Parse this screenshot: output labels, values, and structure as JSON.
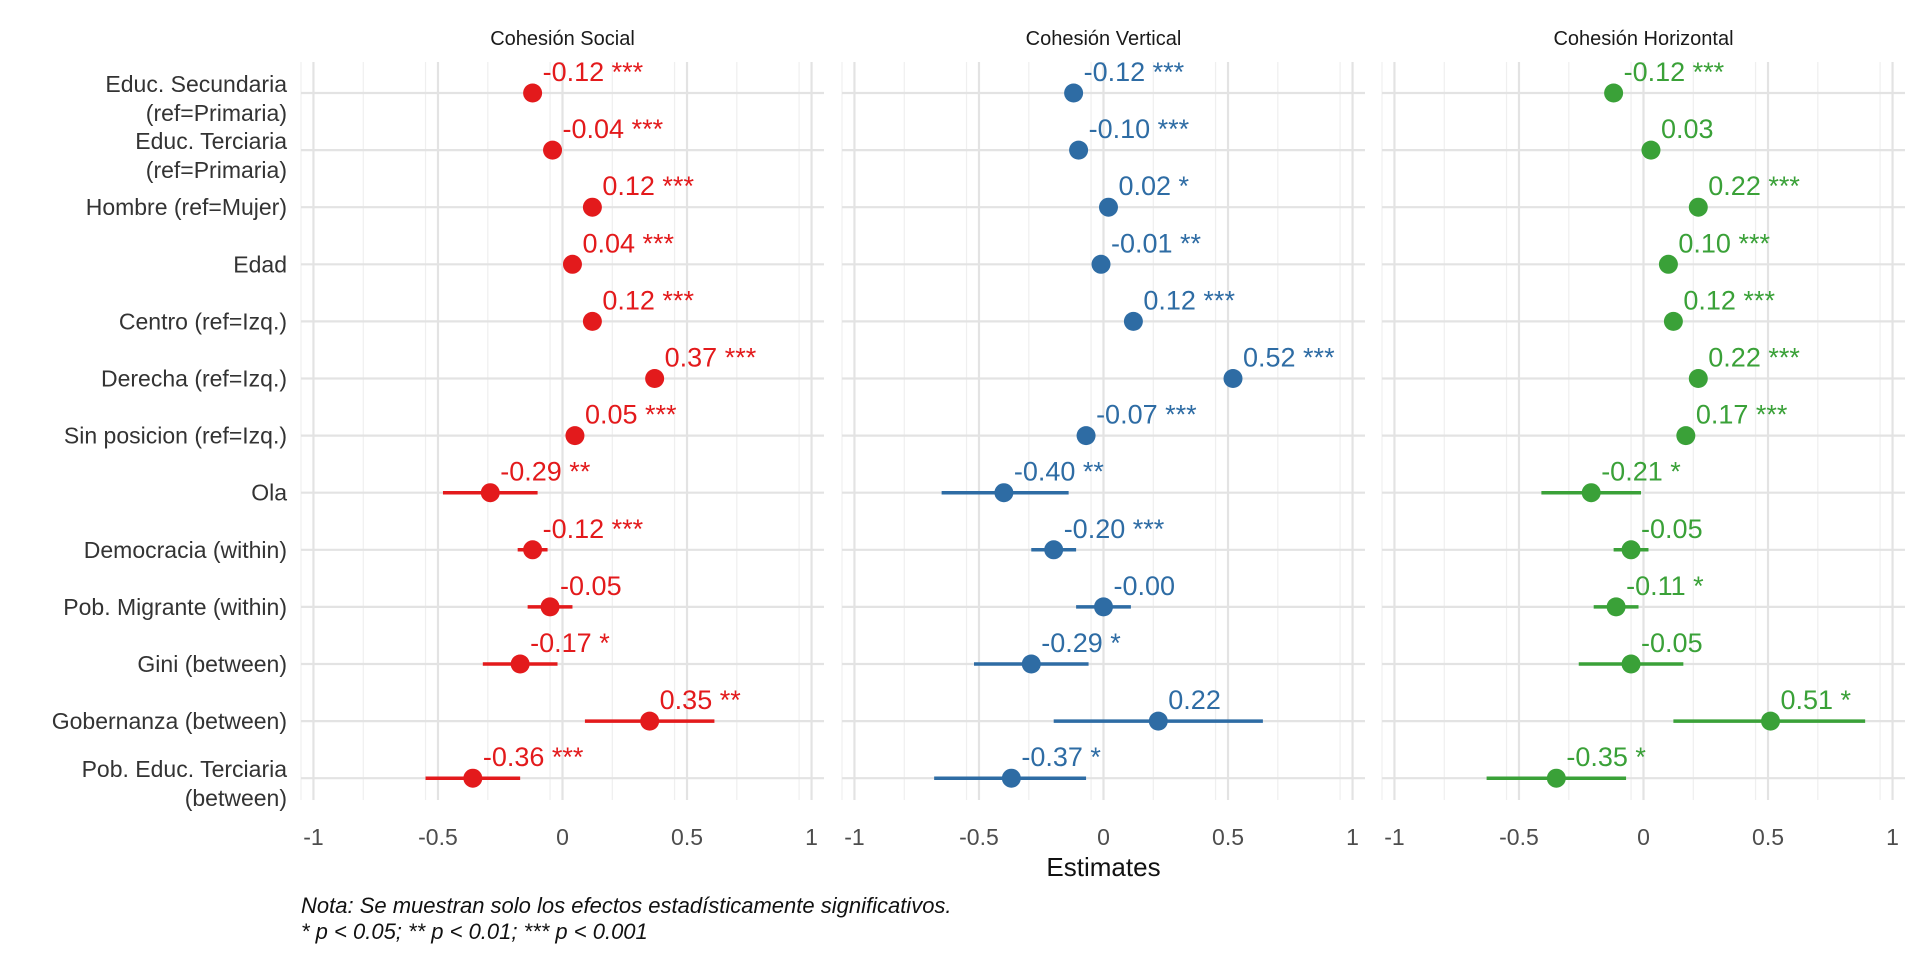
{
  "chart_data": {
    "type": "scatter",
    "subtype": "coefficient-plot",
    "xlabel": "Estimates",
    "xlim": [
      -1.05,
      1.05
    ],
    "xticks": [
      -1,
      -0.5,
      0,
      0.5,
      1
    ],
    "xtick_labels": [
      "-1",
      "-0.5",
      "0",
      "0.5",
      "1"
    ],
    "grid": true,
    "categories": [
      "Educ. Secundaria\n(ref=Primaria)",
      "Educ. Terciaria\n(ref=Primaria)",
      "Hombre (ref=Mujer)",
      "Edad",
      "Centro (ref=Izq.)",
      "Derecha (ref=Izq.)",
      "Sin posicion (ref=Izq.)",
      "Ola",
      "Democracia (within)",
      "Pob. Migrante (within)",
      "Gini (between)",
      "Gobernanza (between)",
      "Pob. Educ. Terciaria\n(between)"
    ],
    "panels": [
      {
        "title": "Cohesión Social",
        "color": "#e31a1c",
        "estimates": [
          -0.12,
          -0.04,
          0.12,
          0.04,
          0.12,
          0.37,
          0.05,
          -0.29,
          -0.12,
          -0.05,
          -0.17,
          0.35,
          -0.36
        ],
        "ci_low": [
          -0.14,
          -0.06,
          0.1,
          0.02,
          0.1,
          0.35,
          0.03,
          -0.48,
          -0.18,
          -0.14,
          -0.32,
          0.09,
          -0.55
        ],
        "ci_high": [
          -0.1,
          -0.02,
          0.14,
          0.06,
          0.14,
          0.39,
          0.07,
          -0.1,
          -0.06,
          0.04,
          -0.02,
          0.61,
          -0.17
        ],
        "labels": [
          "-0.12 ***",
          "-0.04 ***",
          "0.12 ***",
          "0.04 ***",
          "0.12 ***",
          "0.37 ***",
          "0.05 ***",
          "-0.29 **",
          "-0.12 ***",
          "-0.05",
          "-0.17 *",
          "0.35 **",
          "-0.36 ***"
        ]
      },
      {
        "title": "Cohesión Vertical",
        "color": "#2e6ca4",
        "estimates": [
          -0.12,
          -0.1,
          0.02,
          -0.01,
          0.12,
          0.52,
          -0.07,
          -0.4,
          -0.2,
          -0.0,
          -0.29,
          0.22,
          -0.37
        ],
        "ci_low": [
          -0.14,
          -0.12,
          0.0,
          -0.03,
          0.1,
          0.5,
          -0.09,
          -0.65,
          -0.29,
          -0.11,
          -0.52,
          -0.2,
          -0.68
        ],
        "ci_high": [
          -0.1,
          -0.08,
          0.04,
          0.01,
          0.14,
          0.54,
          -0.05,
          -0.14,
          -0.11,
          0.11,
          -0.06,
          0.64,
          -0.07
        ],
        "labels": [
          "-0.12 ***",
          "-0.10 ***",
          "0.02 *",
          "-0.01 **",
          "0.12 ***",
          "0.52 ***",
          "-0.07 ***",
          "-0.40 **",
          "-0.20 ***",
          "-0.00",
          "-0.29 *",
          "0.22",
          "-0.37 *"
        ]
      },
      {
        "title": "Cohesión Horizontal",
        "color": "#3aa138",
        "estimates": [
          -0.12,
          0.03,
          0.22,
          0.1,
          0.12,
          0.22,
          0.17,
          -0.21,
          -0.05,
          -0.11,
          -0.05,
          0.51,
          -0.35
        ],
        "ci_low": [
          -0.14,
          0.01,
          0.2,
          0.08,
          0.1,
          0.2,
          0.15,
          -0.41,
          -0.12,
          -0.2,
          -0.26,
          0.12,
          -0.63
        ],
        "ci_high": [
          -0.1,
          0.05,
          0.24,
          0.12,
          0.14,
          0.24,
          0.19,
          -0.01,
          0.02,
          -0.02,
          0.16,
          0.89,
          -0.07
        ],
        "labels": [
          "-0.12 ***",
          "0.03",
          "0.22 ***",
          "0.10 ***",
          "0.12 ***",
          "0.22 ***",
          "0.17 ***",
          "-0.21 *",
          "-0.05",
          "-0.11 *",
          "-0.05",
          "0.51 *",
          "-0.35 *"
        ]
      }
    ],
    "note_line1": "Nota: Se muestran solo los efectos estadísticamente significativos.",
    "note_line2": "* p < 0.05; ** p < 0.01; *** p < 0.001"
  }
}
